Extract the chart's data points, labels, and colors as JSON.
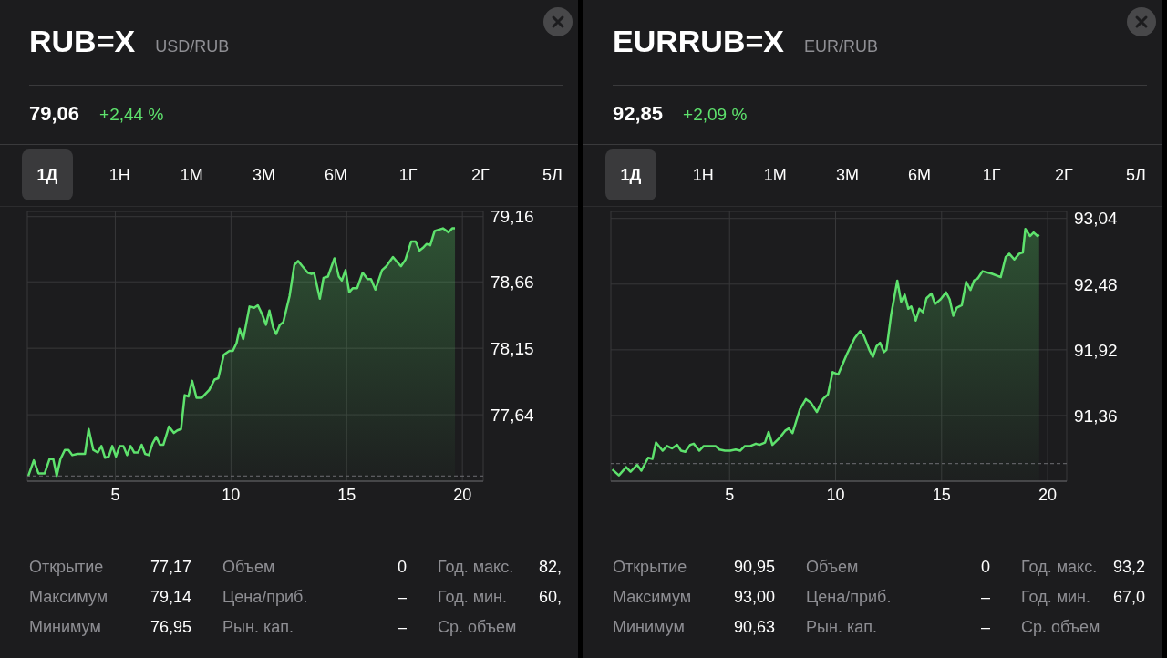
{
  "chart_data": [
    {
      "type": "area",
      "title": "RUB=X",
      "subtitle": "USD/RUB",
      "x": [
        1.24,
        1.48,
        1.68,
        1.95,
        2.16,
        2.32,
        2.47,
        2.63,
        2.82,
        2.98,
        3.14,
        3.37,
        3.69,
        3.85,
        4.05,
        4.24,
        4.4,
        4.56,
        4.72,
        4.87,
        5.03,
        5.19,
        5.35,
        5.51,
        5.66,
        5.82,
        5.98,
        6.14,
        6.29,
        6.45,
        6.61,
        6.77,
        6.93,
        7.08,
        7.32,
        7.53,
        7.68,
        7.84,
        8.0,
        8.16,
        8.32,
        8.51,
        8.74,
        9.06,
        9.29,
        9.45,
        9.69,
        9.93,
        10.08,
        10.24,
        10.37,
        10.53,
        10.8,
        11.0,
        11.16,
        11.35,
        11.51,
        11.66,
        11.82,
        11.95,
        12.11,
        12.26,
        12.53,
        12.74,
        12.9,
        13.08,
        13.32,
        13.48,
        13.59,
        13.84,
        14.0,
        14.19,
        14.47,
        14.66,
        14.79,
        14.95,
        15.11,
        15.26,
        15.45,
        15.69,
        15.9,
        16.05,
        16.24,
        16.53,
        16.72,
        17.0,
        17.19,
        17.35,
        17.54,
        17.79,
        17.98,
        18.14,
        18.29,
        18.45,
        18.61,
        18.8,
        19.16,
        19.4,
        19.56,
        19.68
      ],
      "series": [
        {
          "color": "#5ee26d",
          "values": [
            77.17,
            77.29,
            77.19,
            77.19,
            77.3,
            77.3,
            77.17,
            77.3,
            77.37,
            77.37,
            77.33,
            77.34,
            77.34,
            77.53,
            77.37,
            77.35,
            77.4,
            77.31,
            77.32,
            77.4,
            77.32,
            77.4,
            77.4,
            77.33,
            77.4,
            77.35,
            77.35,
            77.41,
            77.34,
            77.33,
            77.42,
            77.47,
            77.41,
            77.41,
            77.55,
            77.5,
            77.52,
            77.53,
            77.79,
            77.78,
            77.9,
            77.77,
            77.77,
            77.83,
            77.91,
            77.92,
            78.1,
            78.13,
            78.13,
            78.19,
            78.3,
            78.22,
            78.47,
            78.46,
            78.48,
            78.41,
            78.33,
            78.44,
            78.31,
            78.26,
            78.33,
            78.35,
            78.55,
            78.79,
            78.82,
            78.78,
            78.73,
            78.72,
            78.73,
            78.53,
            78.69,
            78.7,
            78.84,
            78.7,
            78.67,
            78.75,
            78.58,
            78.61,
            78.61,
            78.73,
            78.68,
            78.68,
            78.6,
            78.75,
            78.78,
            78.85,
            78.81,
            78.78,
            78.83,
            78.97,
            78.97,
            78.9,
            78.92,
            78.95,
            78.94,
            79.05,
            79.07,
            79.04,
            79.07,
            79.07
          ]
        }
      ],
      "xlim": [
        1.2,
        20.9
      ],
      "xticks": [
        5,
        10,
        15,
        20
      ],
      "ylim": [
        77.13,
        79.2
      ],
      "yticks": [
        {
          "value": 77.64,
          "label": "77,64"
        },
        {
          "value": 78.15,
          "label": "78,15"
        },
        {
          "value": 78.66,
          "label": "78,66"
        },
        {
          "value": 79.16,
          "label": "79,16"
        }
      ],
      "grid": true,
      "ref_lines": [
        {
          "axis": "y",
          "value": 77.17,
          "color": "#6e6e73",
          "line_style": "dashed"
        }
      ],
      "annotations": [
        "79,06",
        "+2,44 %",
        "1Д",
        "1Н",
        "1М",
        "3М",
        "6М",
        "1Г",
        "2Г",
        "5Л",
        "Открытие",
        "77,17",
        "Объем",
        "0",
        "Год. макс.",
        "82,",
        "Максимум",
        "79,14",
        "Цена/приб.",
        "–",
        "Год. мин.",
        "60,",
        "Минимум",
        "76,95",
        "Рын. кап.",
        "–",
        "Ср. объем"
      ]
    },
    {
      "type": "area",
      "title": "EURRUB=X",
      "subtitle": "EUR/RUB",
      "x": [
        -0.53,
        -0.22,
        0.12,
        0.33,
        0.64,
        0.84,
        1.16,
        1.36,
        1.53,
        1.84,
        2.05,
        2.28,
        2.53,
        2.71,
        2.91,
        3.14,
        3.31,
        3.57,
        3.78,
        4.09,
        4.34,
        4.52,
        4.78,
        5.03,
        5.29,
        5.5,
        5.72,
        5.98,
        6.24,
        6.41,
        6.67,
        6.84,
        7.02,
        7.36,
        7.62,
        7.79,
        7.97,
        8.31,
        8.6,
        8.83,
        9.12,
        9.4,
        9.64,
        9.86,
        10.12,
        10.55,
        10.9,
        11.16,
        11.33,
        11.59,
        11.76,
        11.93,
        12.1,
        12.28,
        12.4,
        12.62,
        12.91,
        13.09,
        13.26,
        13.43,
        13.57,
        13.78,
        13.95,
        14.12,
        14.29,
        14.52,
        14.69,
        14.95,
        15.21,
        15.38,
        15.55,
        15.72,
        15.95,
        16.16,
        16.36,
        16.53,
        16.71,
        16.93,
        17.36,
        17.79,
        18.02,
        18.19,
        18.43,
        18.66,
        18.83,
        18.95,
        19.17,
        19.34,
        19.52,
        19.6
      ],
      "series": [
        {
          "color": "#5ee26d",
          "values": [
            90.9,
            90.85,
            90.92,
            90.88,
            90.94,
            90.89,
            91.0,
            90.99,
            91.13,
            91.06,
            91.1,
            91.08,
            91.11,
            91.06,
            91.05,
            91.11,
            91.12,
            91.06,
            91.1,
            91.1,
            91.1,
            91.07,
            91.06,
            91.06,
            91.07,
            91.06,
            91.1,
            91.1,
            91.12,
            91.11,
            91.13,
            91.22,
            91.11,
            91.17,
            91.23,
            91.25,
            91.21,
            91.41,
            91.5,
            91.47,
            91.39,
            91.5,
            91.54,
            91.73,
            91.71,
            91.89,
            92.02,
            92.08,
            92.04,
            91.92,
            91.86,
            91.95,
            91.98,
            91.9,
            91.92,
            92.22,
            92.51,
            92.33,
            92.39,
            92.27,
            92.29,
            92.17,
            92.27,
            92.24,
            92.36,
            92.4,
            92.31,
            92.35,
            92.41,
            92.35,
            92.21,
            92.28,
            92.3,
            92.5,
            92.43,
            92.51,
            92.53,
            92.59,
            92.57,
            92.54,
            92.71,
            92.74,
            92.69,
            92.74,
            92.75,
            92.95,
            92.89,
            92.92,
            92.89,
            92.9
          ]
        }
      ],
      "xlim": [
        -0.6,
        20.9
      ],
      "xticks": [
        5,
        10,
        15,
        20
      ],
      "ylim": [
        90.8,
        93.1
      ],
      "yticks": [
        {
          "value": 91.36,
          "label": "91,36"
        },
        {
          "value": 91.92,
          "label": "91,92"
        },
        {
          "value": 92.48,
          "label": "92,48"
        },
        {
          "value": 93.04,
          "label": "93,04"
        }
      ],
      "grid": true,
      "ref_lines": [
        {
          "axis": "y",
          "value": 90.95,
          "color": "#6e6e73",
          "line_style": "dashed"
        }
      ],
      "annotations": [
        "92,85",
        "+2,09 %",
        "1Д",
        "1Н",
        "1М",
        "3М",
        "6М",
        "1Г",
        "2Г",
        "5Л",
        "Открытие",
        "90,95",
        "Объем",
        "0",
        "Год. макс.",
        "93,2",
        "Максимум",
        "93,00",
        "Цена/приб.",
        "–",
        "Год. мин.",
        "67,0",
        "Минимум",
        "90,63",
        "Рын. кап.",
        "–",
        "Ср. объем"
      ]
    }
  ]
}
